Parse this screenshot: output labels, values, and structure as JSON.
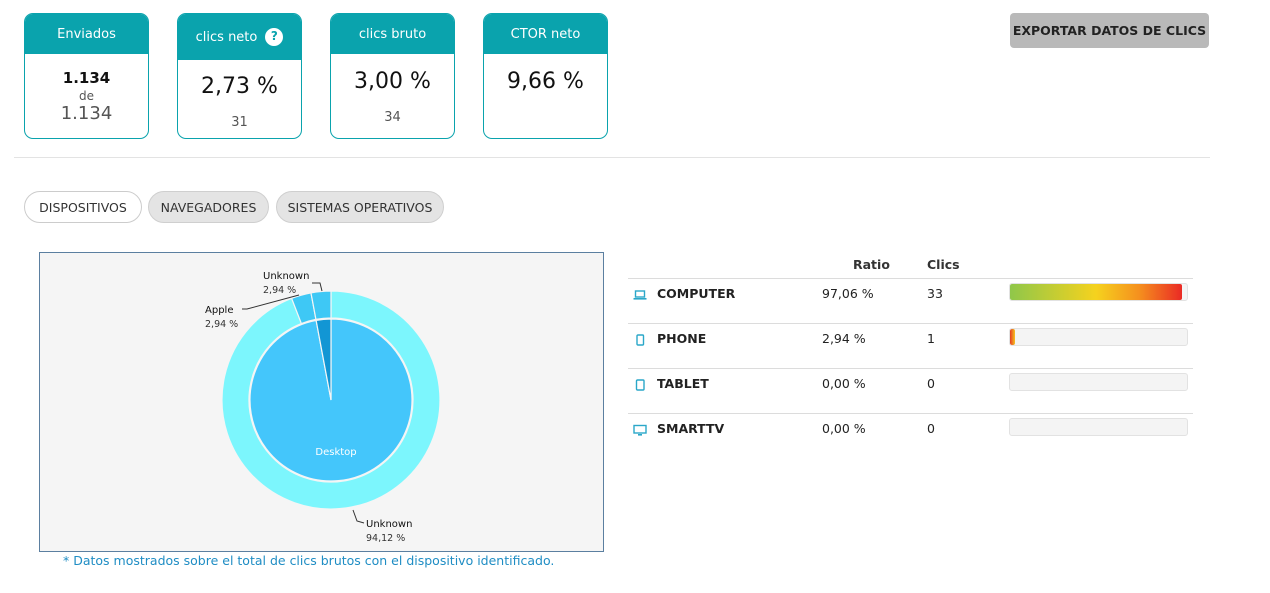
{
  "stats": {
    "enviados": {
      "label": "Enviados",
      "value": "1.134",
      "of_label": "de",
      "total": "1.134"
    },
    "clics_neto": {
      "label": "clics neto",
      "help": "?",
      "value": "2,73 %",
      "count": "31"
    },
    "clics_bruto": {
      "label": "clics bruto",
      "value": "3,00 %",
      "count": "34"
    },
    "ctor_neto": {
      "label": "CTOR neto",
      "value": "9,66 %"
    }
  },
  "export_label": "EXPORTAR DATOS DE CLICS",
  "tabs": [
    {
      "label": "DISPOSITIVOS",
      "active": true
    },
    {
      "label": "NAVEGADORES",
      "active": false
    },
    {
      "label": "SISTEMAS OPERATIVOS",
      "active": false
    }
  ],
  "chart_data": {
    "type": "pie",
    "inner_series": {
      "categories": [
        "Desktop",
        "Mobile"
      ],
      "values": [
        97.06,
        2.94
      ]
    },
    "outer_series": {
      "categories": [
        "Unknown",
        "Apple",
        "Unknown"
      ],
      "values": [
        94.12,
        2.94,
        2.94
      ],
      "labels": [
        "Unknown",
        "Apple",
        "Unknown"
      ],
      "value_labels": [
        "94,12 %",
        "2,94 %",
        "2,94 %"
      ]
    },
    "center_label": "Desktop",
    "colors": {
      "inner_main": "#44c6fb",
      "inner_small": "#1296d4",
      "outer_main": "#7cf6fd",
      "outer_small": "#3ec8f5",
      "background": "#f5f5f5"
    }
  },
  "footnote": "* Datos mostrados sobre el total de clics brutos con el dispositivo identificado.",
  "table": {
    "headers": {
      "ratio": "Ratio",
      "clics": "Clics"
    },
    "rows": [
      {
        "icon": "laptop-icon",
        "name": "COMPUTER",
        "ratio": "97,06 %",
        "clics": "33",
        "bar": 0.9706
      },
      {
        "icon": "phone-icon",
        "name": "PHONE",
        "ratio": "2,94 %",
        "clics": "1",
        "bar": 0.0294
      },
      {
        "icon": "tablet-icon",
        "name": "TABLET",
        "ratio": "0,00 %",
        "clics": "0",
        "bar": 0
      },
      {
        "icon": "tv-icon",
        "name": "SMARTTV",
        "ratio": "0,00 %",
        "clics": "0",
        "bar": 0
      }
    ]
  }
}
